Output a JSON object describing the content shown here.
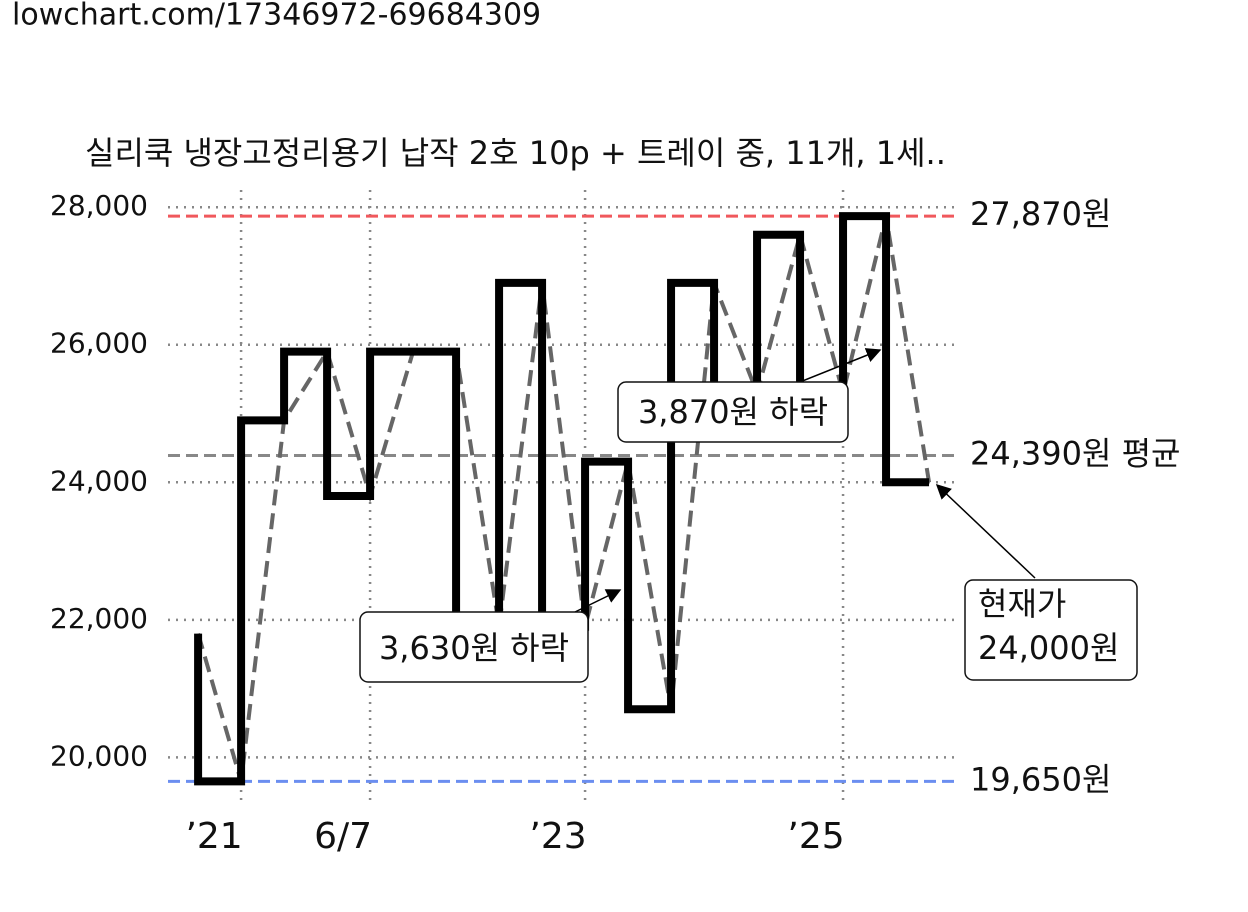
{
  "url": "lowchart.com/17346972-69684309",
  "chart_data": {
    "type": "step",
    "title": "실리쿡 냉장고정리용기 납작 2호 10p + 트레이 중, 11개, 1세..",
    "x": [
      0,
      1,
      2,
      3,
      4,
      5,
      6,
      7,
      8,
      9,
      10,
      11,
      12,
      13,
      14,
      15,
      16,
      17
    ],
    "series": [
      {
        "color": "#000000",
        "trend_color": "#666666",
        "values": [
          21800,
          19650,
          24900,
          25900,
          23800,
          25900,
          25900,
          21900,
          26900,
          21900,
          24300,
          20700,
          26900,
          25300,
          27600,
          25300,
          27870,
          24000
        ]
      }
    ],
    "xlim": [
      -0.7,
      17.72
    ],
    "xticks": [
      {
        "value": 1,
        "label": "’21"
      },
      {
        "value": 4,
        "label": "6/7"
      },
      {
        "value": 9,
        "label": "’23"
      },
      {
        "value": 15,
        "label": "’25"
      }
    ],
    "ylim": [
      19380,
      28250
    ],
    "yticks": [
      {
        "value": 20000,
        "label": "20,000"
      },
      {
        "value": 22000,
        "label": "22,000"
      },
      {
        "value": 24000,
        "label": "24,000"
      },
      {
        "value": 26000,
        "label": "26,000"
      },
      {
        "value": 28000,
        "label": "28,000"
      }
    ],
    "grid": true,
    "reference_lines": [
      {
        "value": 27870,
        "label": "27,870원",
        "color": "#f0585c"
      },
      {
        "value": 24390,
        "label": "24,390원 평균",
        "color": "#888888"
      },
      {
        "value": 19650,
        "label": "19,650원",
        "color": "#6b8ef0"
      }
    ],
    "annotations": [
      {
        "text": "3,630원 하락"
      },
      {
        "text": "3,870원 하락"
      },
      {
        "lines": [
          "현재가",
          "24,000원"
        ]
      }
    ]
  }
}
